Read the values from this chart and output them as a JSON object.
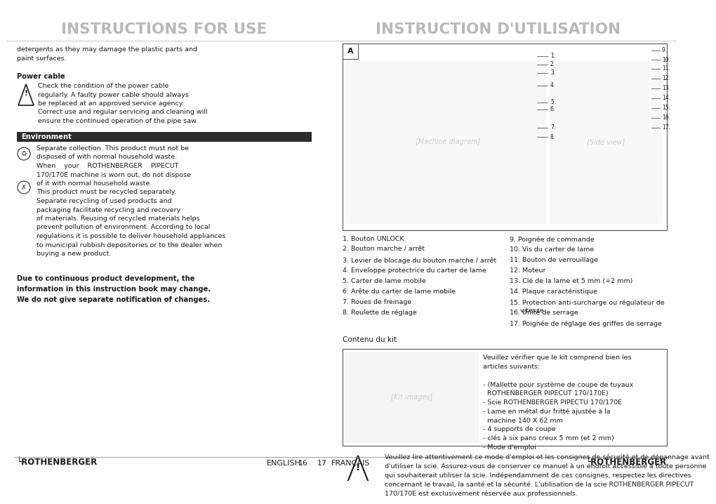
{
  "title_left": "INSTRUCTIONS FOR USE",
  "title_right": "INSTRUCTION D'UTILISATION",
  "title_color": "#b8b8b8",
  "bg_color": "#ffffff",
  "left_text_intro": "detergents as they may damage the plastic parts and\npaint surfaces.",
  "power_cable_title": "Power cable",
  "power_cable_text": "Check the condition of the power cable\nregularly. A faulty power cable should always\nbe replaced at an approved service agency.\nCorrect use and regular servicing and cleaning will\nensure the continued operation of the pipe saw.",
  "env_title": "Environment",
  "env_text1": "Separate collection. This product must not be\ndisposed of with normal household waste.\nWhen    your    ROTHENBERGER    PIPECUT\n170/170E machine is worn out, do not dispose\nof it with normal household waste.\nThis product must be recycled separately.\nSeparate recycling of used products and\npackaging facilitate recycling and recovery\nof materials. Reusing of recycled materials helps\nprevent pollution of environment. According to local\nregulations it is possible to deliver household appliances\nto municipal rubbish depositories or to the dealer when\nbuying a new product.",
  "bold_note": "Due to continuous product development, the\ninformation in this instruction book may change.\nWe do not give separate notification of changes.",
  "parts_list_left": [
    "1. Bouton UNLOCK",
    "2. Bouton marche / arrêt",
    "3. Levier de blocage du bouton marche / arrêt",
    "4. Enveloppe protectrice du carter de lame",
    "5. Carter de lame mobile",
    "6. Arête du carter de lame mobile",
    "7. Roues de freinage",
    "8. Roulette de réglage"
  ],
  "parts_list_right": [
    "9. Poignée de commande",
    "10. Vis du carter de lame",
    "11. Bouton de verrouillage",
    "12. Moteur",
    "13. Clé de la lame et 5 mm (+2 mm)",
    "14. Plaque caractéristique",
    "15. Protection anti-surcharge ou régulateur de\n     vitesse",
    "16. Unité de serrage",
    "17. Poignée de réglage des griffes de serrage"
  ],
  "contenu_title": "Contenu du kit",
  "kit_text": "Veuillez vérifier que le kit comprend bien les\narticles suivants:\n\n- (Mallette pour système de coupe de tuyaux\n  ROTHENBERGER PIPECUT 170/170E)\n- Scie ROTHENBERGER PIPECTU 170/170E\n- Lame en métal dur fritté ajustée à la\n  machine 140 X 62 mm\n- 4 supports de coupe\n- clés à six pans creux 5 mm (et 2 mm)\n- Mode d'emploi",
  "warning_text_fr": "Veuillez lire attentivement ce mode d'emploi et les consignes de sécurité et de dépannage avant\nd'utiliser la scie. Assurez-vous de conserver ce manuel à un endroit accessible à toute personne\nqui souhaiterait utiliser la scie. Indépendamment de ces consignes, respectez les directives\nconcernant le travail, la santé et la sécurité. L'utilisation de la scie ROTHENBERGER PIPECUT\n170/170E est exclusivement réservée aux professionnels.",
  "footer_left": "ROTHENBERGER",
  "footer_center_left": "ENGLISH",
  "footer_page_left": "16",
  "footer_page_right": "17",
  "footer_center_right": "FRANÇAIS",
  "footer_right": "ROTHENBERGER",
  "env_bar_color": "#2c2c2c",
  "env_bar_text_color": "#ffffff",
  "diagram_right_labels": [
    "9.",
    "10.",
    "11.",
    "12.",
    "13.",
    "14.",
    "15.",
    "16.",
    "17."
  ]
}
